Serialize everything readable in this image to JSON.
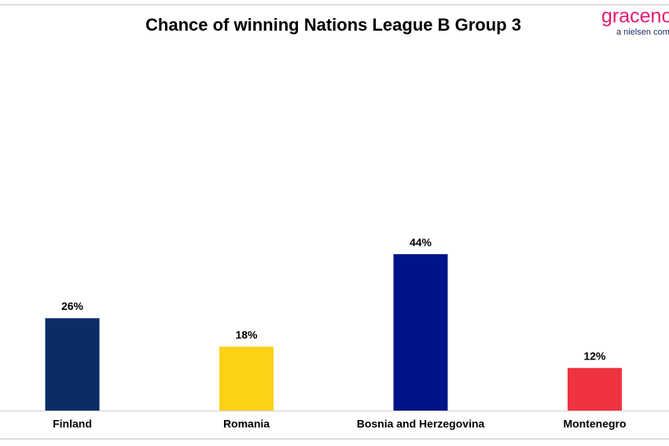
{
  "chart_data": {
    "type": "bar",
    "title": "Chance of winning Nations League B Group 3",
    "categories": [
      "Finland",
      "Romania",
      "Bosnia and Herzegovina",
      "Montenegro"
    ],
    "values": [
      26,
      18,
      44,
      12
    ],
    "value_labels": [
      "26%",
      "18%",
      "44%",
      "12%"
    ],
    "colors": [
      "#0a2d66",
      "#fcd116",
      "#001489",
      "#ef3340"
    ],
    "logo": {
      "name": "gracenote",
      "tagline": "a nielsen company"
    }
  }
}
